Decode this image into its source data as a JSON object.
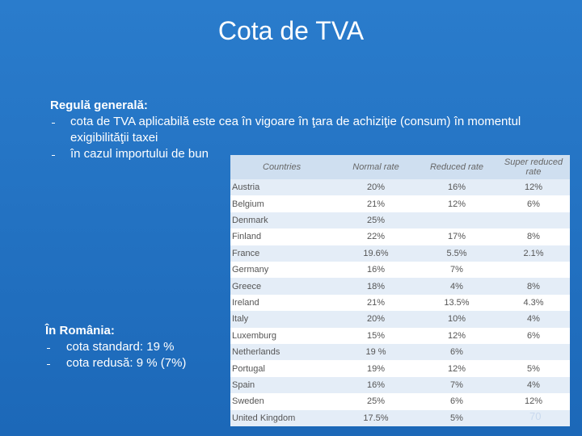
{
  "title": "Cota de TVA",
  "rule": {
    "heading": "Regulă generală:",
    "items": [
      "cota de TVA aplicabilă este cea în vigoare în ţara de achiziţie (consum) în momentul exigibilităţii taxei",
      "în cazul importului de bun"
    ]
  },
  "romania": {
    "heading": "În România:",
    "items": [
      "cota standard: 19 %",
      "cota redusă: 9 % (7%)"
    ]
  },
  "table": {
    "columns": [
      "Countries",
      "Normal rate",
      "Reduced rate",
      "Super reduced rate"
    ],
    "rows": [
      [
        "Austria",
        "20%",
        "16%",
        "12%"
      ],
      [
        "Belgium",
        "21%",
        "12%",
        "6%"
      ],
      [
        "Denmark",
        "25%",
        null,
        null
      ],
      [
        "Finland",
        "22%",
        "17%",
        "8%"
      ],
      [
        "France",
        "19.6%",
        "5.5%",
        "2.1%"
      ],
      [
        "Germany",
        "16%",
        "7%",
        null
      ],
      [
        "Greece",
        "18%",
        "4%",
        "8%"
      ],
      [
        "Ireland",
        "21%",
        "13.5%",
        "4.3%"
      ],
      [
        "Italy",
        "20%",
        "10%",
        "4%"
      ],
      [
        "Luxemburg",
        "15%",
        "12%",
        "6%"
      ],
      [
        "Netherlands",
        "19 %",
        "6%",
        null
      ],
      [
        "Portugal",
        "19%",
        "12%",
        "5%"
      ],
      [
        "Spain",
        "16%",
        "7%",
        "4%"
      ],
      [
        "Sweden",
        "25%",
        "6%",
        "12%"
      ],
      [
        "United Kingdom",
        "17.5%",
        "5%",
        null
      ]
    ]
  },
  "page_number": "70"
}
